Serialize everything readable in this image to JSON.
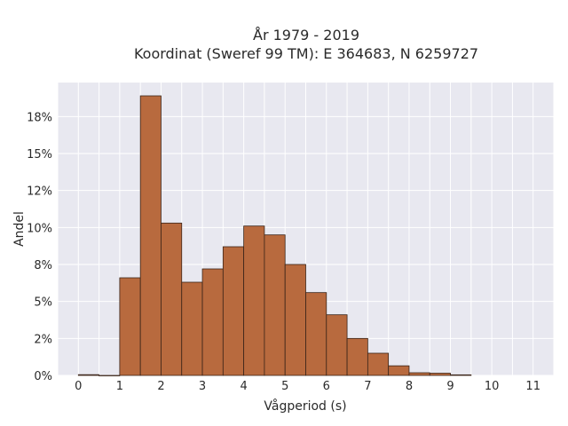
{
  "chart_data": {
    "type": "bar",
    "title_line1": "År 1979 - 2019",
    "title_line2": "Koordinat (Sweref 99 TM): E 364683, N 6259727",
    "xlabel": "Vågperiod (s)",
    "ylabel": "Andel",
    "bin_width": 0.5,
    "bins": [
      {
        "x0": 0.0,
        "value": 0.05
      },
      {
        "x0": 0.5,
        "value": 0.0
      },
      {
        "x0": 1.0,
        "value": 6.6
      },
      {
        "x0": 1.5,
        "value": 18.9
      },
      {
        "x0": 2.0,
        "value": 10.3
      },
      {
        "x0": 2.5,
        "value": 6.3
      },
      {
        "x0": 3.0,
        "value": 7.2
      },
      {
        "x0": 3.5,
        "value": 8.7
      },
      {
        "x0": 4.0,
        "value": 10.1
      },
      {
        "x0": 4.5,
        "value": 9.5
      },
      {
        "x0": 5.0,
        "value": 7.5
      },
      {
        "x0": 5.5,
        "value": 5.6
      },
      {
        "x0": 6.0,
        "value": 4.1
      },
      {
        "x0": 6.5,
        "value": 2.5
      },
      {
        "x0": 7.0,
        "value": 1.5
      },
      {
        "x0": 7.5,
        "value": 0.65
      },
      {
        "x0": 8.0,
        "value": 0.18
      },
      {
        "x0": 8.5,
        "value": 0.15
      },
      {
        "x0": 9.0,
        "value": 0.04
      }
    ],
    "xlim": [
      -0.5,
      11.5
    ],
    "ylim": [
      0,
      19.8
    ],
    "x_ticks": [
      0,
      1,
      2,
      3,
      4,
      5,
      6,
      7,
      8,
      9,
      10,
      11
    ],
    "y_ticks": [
      {
        "value": 0,
        "label": "0%"
      },
      {
        "value": 2.5,
        "label": "2%"
      },
      {
        "value": 5,
        "label": "5%"
      },
      {
        "value": 7.5,
        "label": "8%"
      },
      {
        "value": 10,
        "label": "10%"
      },
      {
        "value": 12.5,
        "label": "12%"
      },
      {
        "value": 15,
        "label": "15%"
      },
      {
        "value": 17.5,
        "label": "18%"
      }
    ],
    "grid": true,
    "bar_color": "#b86a3e",
    "bar_edge_color": "#3a2418",
    "plot_background": "#e8e8f0",
    "grid_color": "#ffffff"
  }
}
